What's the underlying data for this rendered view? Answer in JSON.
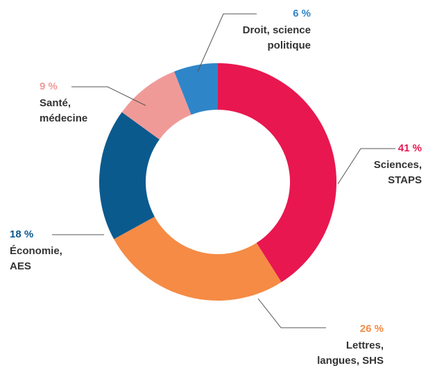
{
  "chart_data": {
    "type": "donut",
    "categories": [
      "Sciences,\nSTAPS",
      "Lettres,\nlangues, SHS",
      "Économie,\nAES",
      "Santé,\nmédecine",
      "Droit, science\npolitique"
    ],
    "values": [
      41,
      26,
      18,
      9,
      6
    ],
    "value_labels": [
      "41 %",
      "26 %",
      "18 %",
      "9 %",
      "6 %"
    ],
    "colors": [
      "#e8174f",
      "#f58b45",
      "#0b5a8e",
      "#f09a98",
      "#2e86c8"
    ]
  }
}
